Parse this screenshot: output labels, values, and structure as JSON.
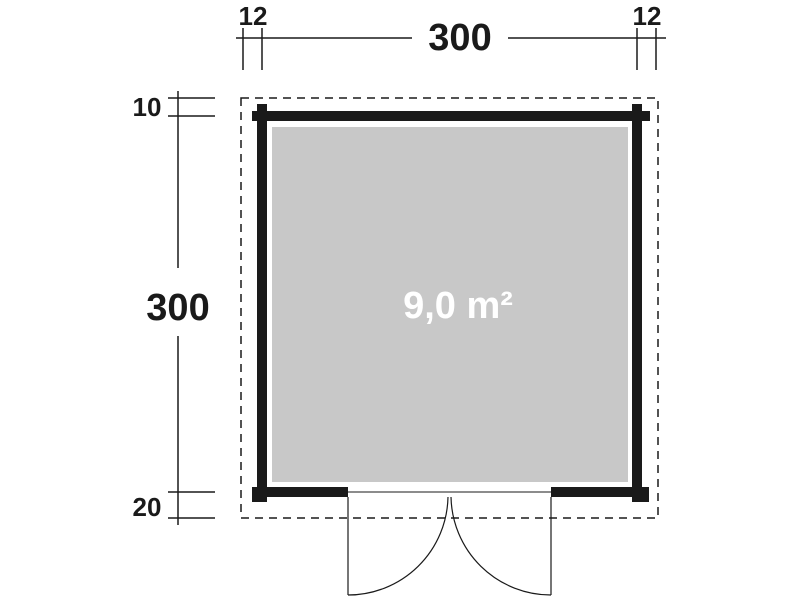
{
  "dimensions": {
    "top_left_wall": "12",
    "width": "300",
    "top_right_wall": "12",
    "top_overhang": "10",
    "depth": "300",
    "bottom_overhang": "20"
  },
  "floor": {
    "area": "9,0 m²"
  },
  "colors": {
    "wall": "#1a1a1a",
    "floor": "#c8c8c8",
    "line": "#1a1a1a"
  }
}
